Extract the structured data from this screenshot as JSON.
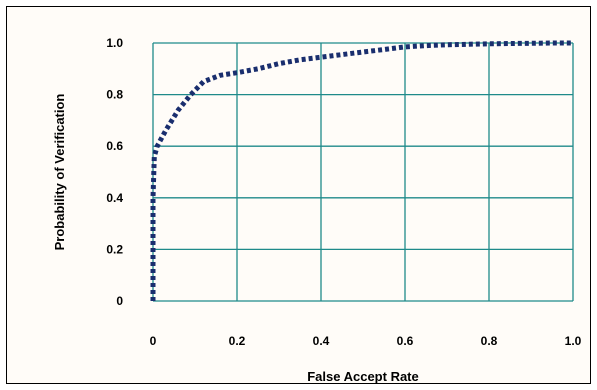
{
  "chart_data": {
    "type": "line",
    "title": "",
    "xlabel": "False Accept Rate",
    "ylabel": "Probability of Verification",
    "xlim": [
      0,
      1.0
    ],
    "ylim": [
      0,
      1.0
    ],
    "x_ticks": [
      0,
      0.2,
      0.4,
      0.6,
      0.8,
      1.0
    ],
    "x_tick_labels": [
      "0",
      "0.2",
      "0.4",
      "0.6",
      "0.8",
      "1.0"
    ],
    "y_ticks": [
      0,
      0.2,
      0.4,
      0.6,
      0.8,
      1.0
    ],
    "y_tick_labels": [
      "0",
      "0.2",
      "0.4",
      "0.6",
      "0.8",
      "1.0"
    ],
    "grid": true,
    "legend": "none",
    "colors": {
      "series": "#1a2e6e",
      "grid": "#1f8a8a",
      "frame": "#000000",
      "background": "#fffcf8"
    },
    "series": [
      {
        "line_style": "dotted",
        "x": [
          0.0,
          0.0,
          0.003,
          0.01,
          0.03,
          0.06,
          0.09,
          0.12,
          0.16,
          0.2,
          0.25,
          0.3,
          0.35,
          0.4,
          0.45,
          0.5,
          0.55,
          0.6,
          0.65,
          0.7,
          0.75,
          0.8,
          0.85,
          0.9,
          0.95,
          1.0
        ],
        "y": [
          0.0,
          0.4,
          0.56,
          0.6,
          0.66,
          0.74,
          0.8,
          0.85,
          0.875,
          0.885,
          0.9,
          0.92,
          0.935,
          0.945,
          0.955,
          0.965,
          0.975,
          0.985,
          0.99,
          0.993,
          0.995,
          0.997,
          0.998,
          0.999,
          1.0,
          1.0
        ]
      }
    ]
  }
}
